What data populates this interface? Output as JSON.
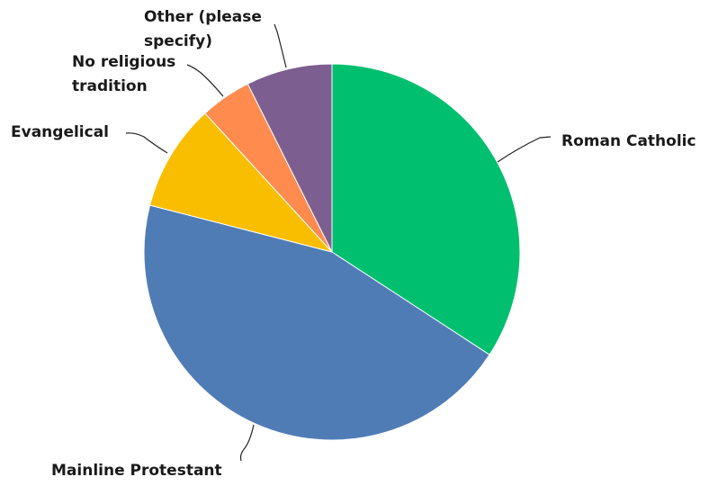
{
  "chart_data": {
    "type": "pie",
    "categories": [
      "Roman Catholic",
      "Mainline Protestant",
      "Evangelical",
      "No religious tradition",
      "Other (please specify)"
    ],
    "values": [
      34.2,
      44.8,
      9.2,
      4.4,
      7.4
    ],
    "colors": [
      "#00bf6f",
      "#507cb6",
      "#f9be00",
      "#ff8b4f",
      "#7d5e90"
    ]
  }
}
